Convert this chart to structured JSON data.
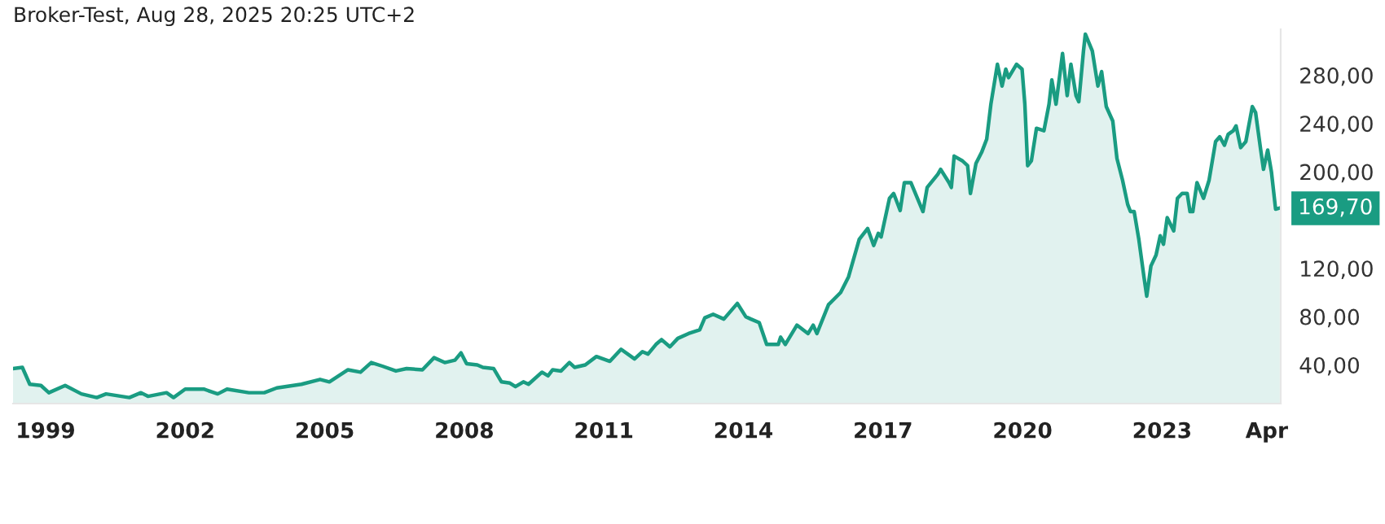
{
  "chart_data": {
    "type": "area",
    "title": "Broker-Test, Aug 28, 2025 20:25 UTC+2",
    "series": [
      {
        "color": "#1a9c82",
        "x": [
          1998.3,
          1998.5,
          1998.66,
          1998.9,
          1999.07,
          1999.42,
          1999.77,
          2000.1,
          2000.3,
          2000.8,
          2001.05,
          2001.2,
          2001.6,
          2001.75,
          2002.0,
          2002.4,
          2002.7,
          2002.9,
          2003.37,
          2003.7,
          2003.97,
          2004.5,
          2004.9,
          2005.1,
          2005.5,
          2005.77,
          2006.0,
          2006.24,
          2006.53,
          2006.76,
          2007.1,
          2007.35,
          2007.58,
          2007.8,
          2007.93,
          2008.05,
          2008.28,
          2008.4,
          2008.63,
          2008.8,
          2008.98,
          2009.1,
          2009.27,
          2009.38,
          2009.67,
          2009.8,
          2009.9,
          2010.08,
          2010.26,
          2010.37,
          2010.6,
          2010.84,
          2011.13,
          2011.37,
          2011.66,
          2011.83,
          2011.95,
          2012.12,
          2012.24,
          2012.42,
          2012.59,
          2012.82,
          2013.06,
          2013.17,
          2013.35,
          2013.58,
          2013.87,
          2014.05,
          2014.16,
          2014.34,
          2014.5,
          2014.75,
          2014.8,
          2014.9,
          2015.15,
          2015.39,
          2015.5,
          2015.58,
          2015.83,
          2016.09,
          2016.26,
          2016.49,
          2016.67,
          2016.8,
          2016.9,
          2016.96,
          2017.14,
          2017.23,
          2017.37,
          2017.46,
          2017.6,
          2017.86,
          2017.95,
          2018.18,
          2018.24,
          2018.42,
          2018.47,
          2018.53,
          2018.71,
          2018.82,
          2018.88,
          2019.0,
          2019.12,
          2019.23,
          2019.32,
          2019.46,
          2019.56,
          2019.64,
          2019.7,
          2019.87,
          2019.99,
          2020.05,
          2020.11,
          2020.19,
          2020.3,
          2020.46,
          2020.57,
          2020.63,
          2020.72,
          2020.86,
          2020.96,
          2021.04,
          2021.15,
          2021.21,
          2021.31,
          2021.35,
          2021.5,
          2021.62,
          2021.7,
          2021.8,
          2021.94,
          2022.03,
          2022.15,
          2022.26,
          2022.32,
          2022.4,
          2022.5,
          2022.61,
          2022.67,
          2022.76,
          2022.87,
          2022.96,
          2023.03,
          2023.11,
          2023.25,
          2023.33,
          2023.43,
          2023.54,
          2023.6,
          2023.66,
          2023.75,
          2023.89,
          2024.01,
          2024.15,
          2024.24,
          2024.34,
          2024.42,
          2024.53,
          2024.59,
          2024.69,
          2024.8,
          2024.94,
          2025.01,
          2025.12,
          2025.18,
          2025.27,
          2025.35,
          2025.44,
          2025.53
        ],
        "values": [
          37,
          38,
          24,
          23,
          17,
          23,
          16,
          13,
          16,
          13,
          17,
          14,
          17,
          13,
          20,
          20,
          16,
          20,
          17,
          17,
          21,
          24,
          28,
          26,
          36,
          34,
          42,
          39,
          35,
          37,
          36,
          46,
          42,
          44,
          50,
          41,
          40,
          38,
          37,
          26,
          25,
          22,
          26,
          24,
          34,
          31,
          36,
          35,
          42,
          38,
          40,
          47,
          43,
          53,
          45,
          51,
          49,
          57,
          61,
          55,
          62,
          66,
          69,
          79,
          82,
          78,
          91,
          80,
          78,
          75,
          57,
          57,
          63,
          57,
          73,
          66,
          73,
          66,
          90,
          100,
          113,
          144,
          153,
          139,
          149,
          146,
          178,
          182,
          168,
          191,
          191,
          167,
          187,
          198,
          202,
          191,
          187,
          213,
          209,
          205,
          182,
          207,
          216,
          227,
          256,
          289,
          271,
          285,
          278,
          289,
          285,
          256,
          205,
          209,
          236,
          234,
          256,
          276,
          256,
          298,
          263,
          289,
          263,
          258,
          300,
          314,
          300,
          271,
          283,
          254,
          242,
          211,
          193,
          173,
          167,
          167,
          144,
          113,
          97,
          122,
          131,
          147,
          140,
          162,
          151,
          178,
          182,
          182,
          167,
          167,
          191,
          178,
          193,
          225,
          229,
          222,
          231,
          234,
          238,
          220,
          225,
          254,
          249,
          218,
          202,
          218,
          200,
          169,
          170
        ]
      }
    ],
    "xlim": [
      1998.3,
      2025.55
    ],
    "xticks": [
      1999,
      2002,
      2005,
      2008,
      2011,
      2014,
      2017,
      2020,
      2023,
      {
        "value": 2025.25,
        "label": "Apr"
      }
    ],
    "ylim": [
      8,
      318
    ],
    "yticks": [
      {
        "value": 40,
        "label": "40,00"
      },
      {
        "value": 80,
        "label": "80,00"
      },
      {
        "value": 120,
        "label": "120,00"
      },
      {
        "value": 200,
        "label": "200,00"
      },
      {
        "value": 240,
        "label": "240,00"
      },
      {
        "value": 280,
        "label": "280,00"
      }
    ],
    "annotations": [
      {
        "text": "169,70",
        "x": 2025.53,
        "y": 169.7
      }
    ]
  }
}
